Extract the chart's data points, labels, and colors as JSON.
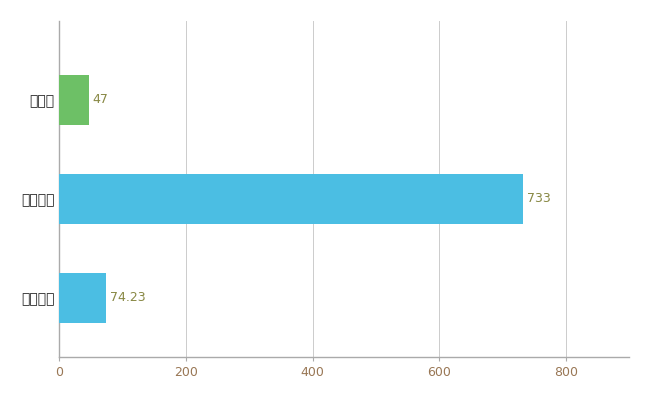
{
  "categories": [
    "全国平均",
    "全国最大",
    "徳島県"
  ],
  "values": [
    74.23,
    733,
    47
  ],
  "bar_colors": [
    "#4BBEE3",
    "#4BBEE3",
    "#6DC066"
  ],
  "value_labels": [
    "74.23",
    "733",
    "47"
  ],
  "xlim": [
    0,
    900
  ],
  "xticks": [
    0,
    200,
    400,
    600,
    800
  ],
  "background_color": "#ffffff",
  "grid_color": "#cccccc",
  "bar_height": 0.5,
  "label_fontsize": 10,
  "tick_fontsize": 9,
  "value_label_color": "#888844",
  "value_label_fontsize": 9
}
